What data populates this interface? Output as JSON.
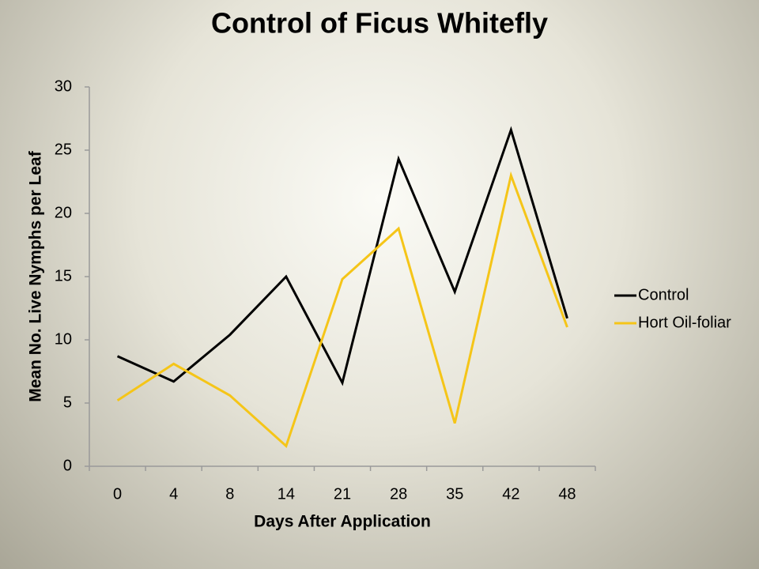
{
  "chart_data": {
    "type": "line",
    "title": "Control of Ficus Whitefly",
    "x_label": "Days After Application",
    "y_label": "Mean No. Live Nymphs per Leaf",
    "categories": [
      "0",
      "4",
      "8",
      "14",
      "21",
      "28",
      "35",
      "42",
      "48"
    ],
    "series": [
      {
        "name": "Control",
        "color": "#000000",
        "values": [
          8.7,
          6.7,
          10.4,
          15,
          6.6,
          24.3,
          13.8,
          26.6,
          11.7
        ]
      },
      {
        "name": "Hort Oil-foliar",
        "color": "#f5c518",
        "values": [
          5.2,
          8.1,
          5.6,
          1.6,
          14.8,
          18.8,
          3.4,
          23,
          11
        ]
      }
    ],
    "ylim": [
      0,
      30
    ],
    "yticks": [
      0,
      5,
      10,
      15,
      20,
      25,
      30
    ],
    "grid": false,
    "legend": "right"
  }
}
